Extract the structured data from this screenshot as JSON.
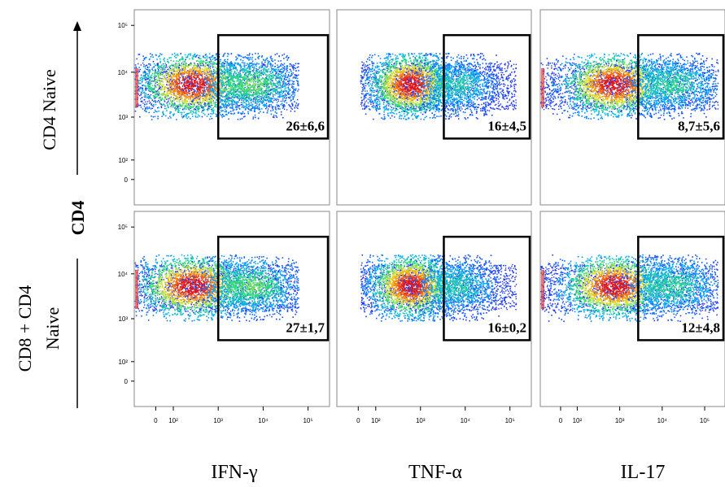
{
  "chart_data": {
    "type": "scatter",
    "subtype": "flow-cytometry-density-grid",
    "y_axis_title": "CD4",
    "x_axis_title_per_column": true,
    "row_labels": [
      {
        "lines": [
          "CD4 Naive"
        ]
      },
      {
        "lines": [
          "CD8 + CD4",
          "Naive"
        ]
      }
    ],
    "columns": [
      {
        "marker": "IFN-γ",
        "xlabel": "IFN-γ"
      },
      {
        "marker": "TNF-α",
        "xlabel": "TNF-α"
      },
      {
        "marker": "IL-17",
        "xlabel": "IL-17"
      }
    ],
    "x_ticks": [
      "0",
      "10²",
      "10³",
      "10⁴",
      "10⁵"
    ],
    "y_ticks": [
      "10⁵",
      "10⁴",
      "10³",
      "10²",
      "0"
    ],
    "panels": [
      {
        "row": 0,
        "col": 0,
        "gate_label": "26±6,6",
        "gate_value": 26,
        "gate_sd": 6.6
      },
      {
        "row": 0,
        "col": 1,
        "gate_label": "16±4,5",
        "gate_value": 16,
        "gate_sd": 4.5
      },
      {
        "row": 0,
        "col": 2,
        "gate_label": "8,7±5,6",
        "gate_value": 8.7,
        "gate_sd": 5.6
      },
      {
        "row": 1,
        "col": 0,
        "gate_label": "27±1,7",
        "gate_value": 27,
        "gate_sd": 1.7
      },
      {
        "row": 1,
        "col": 1,
        "gate_label": "16±0,2",
        "gate_value": 16,
        "gate_sd": 0.2
      },
      {
        "row": 1,
        "col": 2,
        "gate_label": "12±4,8",
        "gate_value": 12,
        "gate_sd": 4.8
      }
    ]
  }
}
